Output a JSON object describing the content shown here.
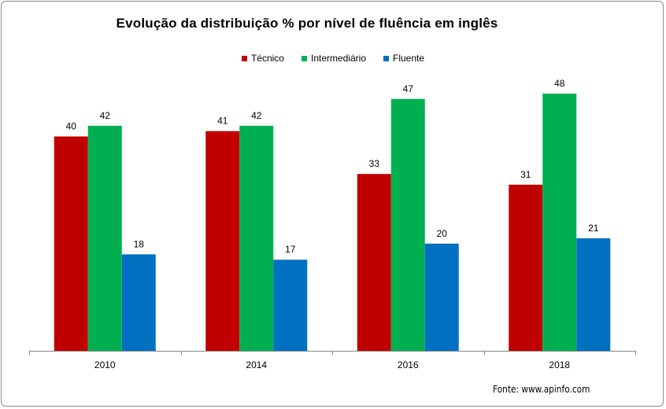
{
  "chart_data": {
    "type": "bar",
    "title": "Evolução da distribuição  % por nível de fluência em inglês",
    "categories": [
      "2010",
      "2014",
      "2016",
      "2018"
    ],
    "series": [
      {
        "name": "Técnico",
        "color": "#c00000",
        "values": [
          40,
          41,
          33,
          31
        ]
      },
      {
        "name": "Intermediário",
        "color": "#00b050",
        "values": [
          42,
          42,
          47,
          48
        ]
      },
      {
        "name": "Fluente",
        "color": "#0070c0",
        "values": [
          18,
          17,
          20,
          21
        ]
      }
    ],
    "ylim": [
      0,
      60
    ],
    "grid": false,
    "legend_position": "top",
    "data_labels": true,
    "source": "Fonte: www.apinfo.com"
  }
}
